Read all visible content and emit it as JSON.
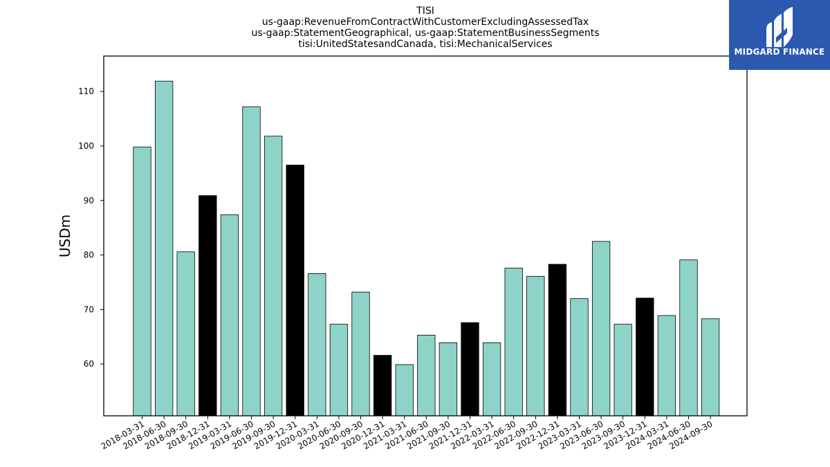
{
  "chart_data": {
    "type": "bar",
    "title_lines": [
      "TISI",
      "us-gaap:RevenueFromContractWithCustomerExcludingAssessedTax",
      "us-gaap:StatementGeographical, us-gaap:StatementBusinessSegments",
      "tisi:UnitedStatesandCanada, tisi:MechanicalServices"
    ],
    "ylabel": "USDm",
    "xlabel": "",
    "ylim": [
      50.5,
      116.5
    ],
    "yticks": [
      60,
      70,
      80,
      90,
      100,
      110
    ],
    "categories": [
      "2018-03-31",
      "2018-06-30",
      "2018-09-30",
      "2018-12-31",
      "2019-03-31",
      "2019-06-30",
      "2019-09-30",
      "2019-12-31",
      "2020-03-31",
      "2020-06-30",
      "2020-09-30",
      "2020-12-31",
      "2021-03-31",
      "2021-06-30",
      "2021-09-30",
      "2021-12-31",
      "2022-03-31",
      "2022-06-30",
      "2022-09-30",
      "2022-12-31",
      "2023-03-31",
      "2023-06-30",
      "2023-09-30",
      "2023-12-31",
      "2024-03-31",
      "2024-06-30",
      "2024-09-30"
    ],
    "values": [
      99.8,
      111.9,
      80.6,
      90.9,
      87.4,
      107.2,
      101.8,
      96.5,
      76.6,
      67.3,
      73.2,
      61.6,
      59.9,
      65.3,
      63.9,
      67.6,
      63.9,
      77.6,
      76.1,
      78.3,
      72.0,
      82.5,
      67.3,
      72.1,
      68.9,
      79.1,
      68.3
    ],
    "highlighted": [
      false,
      false,
      false,
      true,
      false,
      false,
      false,
      true,
      false,
      false,
      false,
      true,
      false,
      false,
      false,
      true,
      false,
      false,
      false,
      true,
      false,
      false,
      false,
      true,
      false,
      false,
      false
    ],
    "colors": {
      "normal": "#8dd3c7",
      "highlight": "#000000",
      "edge": "#000000"
    },
    "grid": false,
    "legend": "none"
  },
  "logo": {
    "text": "MIDGARD FINANCE",
    "background": "#2b59b0"
  }
}
